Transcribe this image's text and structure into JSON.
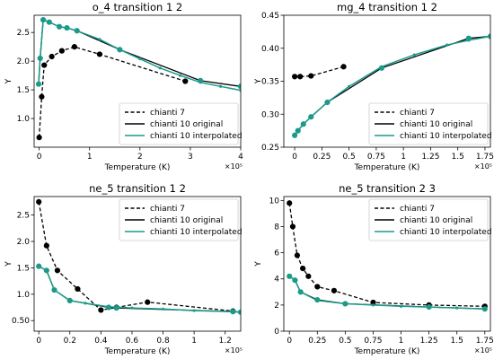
{
  "chart_data": [
    {
      "type": "line",
      "title": "o_4 transition 1 2",
      "xlabel": "Temperature (K)",
      "ylabel": "Y",
      "x_scale_label": "×10⁵",
      "xlim": [
        -0.1,
        4.0
      ],
      "ylim": [
        0.5,
        2.8
      ],
      "xticks": [
        0,
        1,
        2,
        3,
        4
      ],
      "yticks": [
        1.0,
        1.5,
        2.0,
        2.5
      ],
      "legend_position": "lower-right",
      "grid": false,
      "series": [
        {
          "name": "chianti 7",
          "style": "dashed-markers",
          "color": "#000000",
          "x": [
            0.0,
            0.05,
            0.1,
            0.25,
            0.45,
            0.7,
            1.2,
            2.9
          ],
          "y": [
            0.67,
            1.38,
            1.93,
            2.08,
            2.18,
            2.25,
            2.12,
            1.65
          ]
        },
        {
          "name": "chianti 10 original",
          "style": "solid-markers",
          "color": "#000000",
          "x": [
            -0.01,
            0.02,
            0.08,
            0.2,
            0.4,
            0.55,
            0.75,
            1.6,
            3.2,
            4.0
          ],
          "y": [
            1.6,
            2.05,
            2.72,
            2.68,
            2.6,
            2.58,
            2.53,
            2.2,
            1.66,
            1.56
          ]
        },
        {
          "name": "chianti 10 interpolated",
          "style": "solid-dots",
          "color": "#1b9a8a",
          "x": [
            -0.01,
            0.02,
            0.08,
            0.2,
            0.4,
            0.55,
            0.75,
            1.2,
            1.6,
            2.0,
            2.4,
            2.8,
            3.2,
            3.6,
            4.0
          ],
          "y": [
            1.6,
            2.05,
            2.72,
            2.68,
            2.6,
            2.58,
            2.53,
            2.38,
            2.2,
            2.04,
            1.88,
            1.75,
            1.63,
            1.56,
            1.49
          ]
        }
      ]
    },
    {
      "type": "line",
      "title": "mg_4 transition 1 2",
      "xlabel": "Temperature (K)",
      "ylabel": "Y",
      "x_scale_label": "×10⁵",
      "xlim": [
        -0.1,
        1.8
      ],
      "ylim": [
        0.25,
        0.45
      ],
      "xticks": [
        0.0,
        0.25,
        0.5,
        0.75,
        1.0,
        1.25,
        1.5,
        1.75
      ],
      "yticks": [
        0.25,
        0.3,
        0.35,
        0.4,
        0.45
      ],
      "legend_position": "lower-right",
      "grid": false,
      "series": [
        {
          "name": "chianti 7",
          "style": "dashed-markers",
          "color": "#000000",
          "x": [
            0.0,
            0.05,
            0.15,
            0.45
          ],
          "y": [
            0.357,
            0.357,
            0.358,
            0.372
          ]
        },
        {
          "name": "chianti 10 original",
          "style": "solid-markers",
          "color": "#000000",
          "x": [
            0.0,
            0.03,
            0.08,
            0.15,
            0.3,
            0.8,
            1.6,
            1.8
          ],
          "y": [
            0.268,
            0.275,
            0.285,
            0.296,
            0.318,
            0.37,
            0.415,
            0.418
          ]
        },
        {
          "name": "chianti 10 interpolated",
          "style": "solid-dots",
          "color": "#1b9a8a",
          "x": [
            0.0,
            0.03,
            0.08,
            0.15,
            0.3,
            0.5,
            0.8,
            1.1,
            1.4,
            1.6,
            1.8
          ],
          "y": [
            0.268,
            0.275,
            0.285,
            0.296,
            0.318,
            0.342,
            0.372,
            0.39,
            0.405,
            0.412,
            0.418
          ]
        }
      ]
    },
    {
      "type": "line",
      "title": "ne_5 transition 1 2",
      "xlabel": "Temperature (K)",
      "ylabel": "Y",
      "x_scale_label": "×10⁵",
      "xlim": [
        -0.03,
        1.3
      ],
      "ylim": [
        0.3,
        2.85
      ],
      "xticks": [
        0.0,
        0.2,
        0.4,
        0.6,
        0.8,
        1.0,
        1.2
      ],
      "yticks": [
        0.5,
        1.0,
        1.5,
        2.0,
        2.5
      ],
      "legend_position": "upper-right",
      "grid": false,
      "series": [
        {
          "name": "chianti 7",
          "style": "dashed-markers",
          "color": "#000000",
          "x": [
            0.0,
            0.05,
            0.12,
            0.25,
            0.4,
            0.5,
            0.7,
            1.25
          ],
          "y": [
            2.75,
            1.92,
            1.45,
            1.1,
            0.7,
            0.75,
            0.85,
            0.68
          ]
        },
        {
          "name": "chianti 10 original",
          "style": "solid-markers",
          "color": "#000000",
          "x": [
            0.0,
            0.05,
            0.1,
            0.2,
            0.45,
            0.5,
            1.25,
            1.3
          ],
          "y": [
            1.53,
            1.45,
            1.08,
            0.88,
            0.75,
            0.74,
            0.67,
            0.66
          ]
        },
        {
          "name": "chianti 10 interpolated",
          "style": "solid-dots",
          "color": "#1b9a8a",
          "x": [
            0.0,
            0.05,
            0.1,
            0.2,
            0.3,
            0.45,
            0.6,
            0.8,
            1.0,
            1.25,
            1.3
          ],
          "y": [
            1.53,
            1.45,
            1.08,
            0.88,
            0.83,
            0.76,
            0.74,
            0.72,
            0.69,
            0.67,
            0.66
          ]
        }
      ]
    },
    {
      "type": "line",
      "title": "ne_5 transition 2 3",
      "xlabel": "Temperature (K)",
      "ylabel": "Y",
      "x_scale_label": "×10⁵",
      "xlim": [
        -0.05,
        1.8
      ],
      "ylim": [
        0,
        10.3
      ],
      "xticks": [
        0.0,
        0.25,
        0.5,
        0.75,
        1.0,
        1.25,
        1.5,
        1.75
      ],
      "yticks": [
        0,
        2,
        4,
        6,
        8,
        10
      ],
      "legend_position": "upper-right",
      "grid": false,
      "series": [
        {
          "name": "chianti 7",
          "style": "dashed-markers",
          "color": "#000000",
          "x": [
            0.0,
            0.03,
            0.07,
            0.12,
            0.17,
            0.25,
            0.4,
            0.75,
            1.25,
            1.75
          ],
          "y": [
            9.8,
            8.0,
            5.8,
            4.8,
            4.2,
            3.4,
            3.1,
            2.2,
            2.0,
            1.9
          ]
        },
        {
          "name": "chianti 10 original",
          "style": "solid-markers",
          "color": "#000000",
          "x": [
            0.0,
            0.05,
            0.1,
            0.25,
            0.5,
            1.25,
            1.75
          ],
          "y": [
            4.2,
            3.9,
            3.0,
            2.4,
            2.1,
            1.85,
            1.7
          ]
        },
        {
          "name": "chianti 10 interpolated",
          "style": "solid-dots",
          "color": "#1b9a8a",
          "x": [
            0.0,
            0.05,
            0.1,
            0.25,
            0.5,
            0.75,
            1.0,
            1.25,
            1.5,
            1.75
          ],
          "y": [
            4.2,
            3.9,
            3.0,
            2.35,
            2.1,
            2.0,
            1.9,
            1.85,
            1.78,
            1.7
          ]
        }
      ]
    }
  ]
}
